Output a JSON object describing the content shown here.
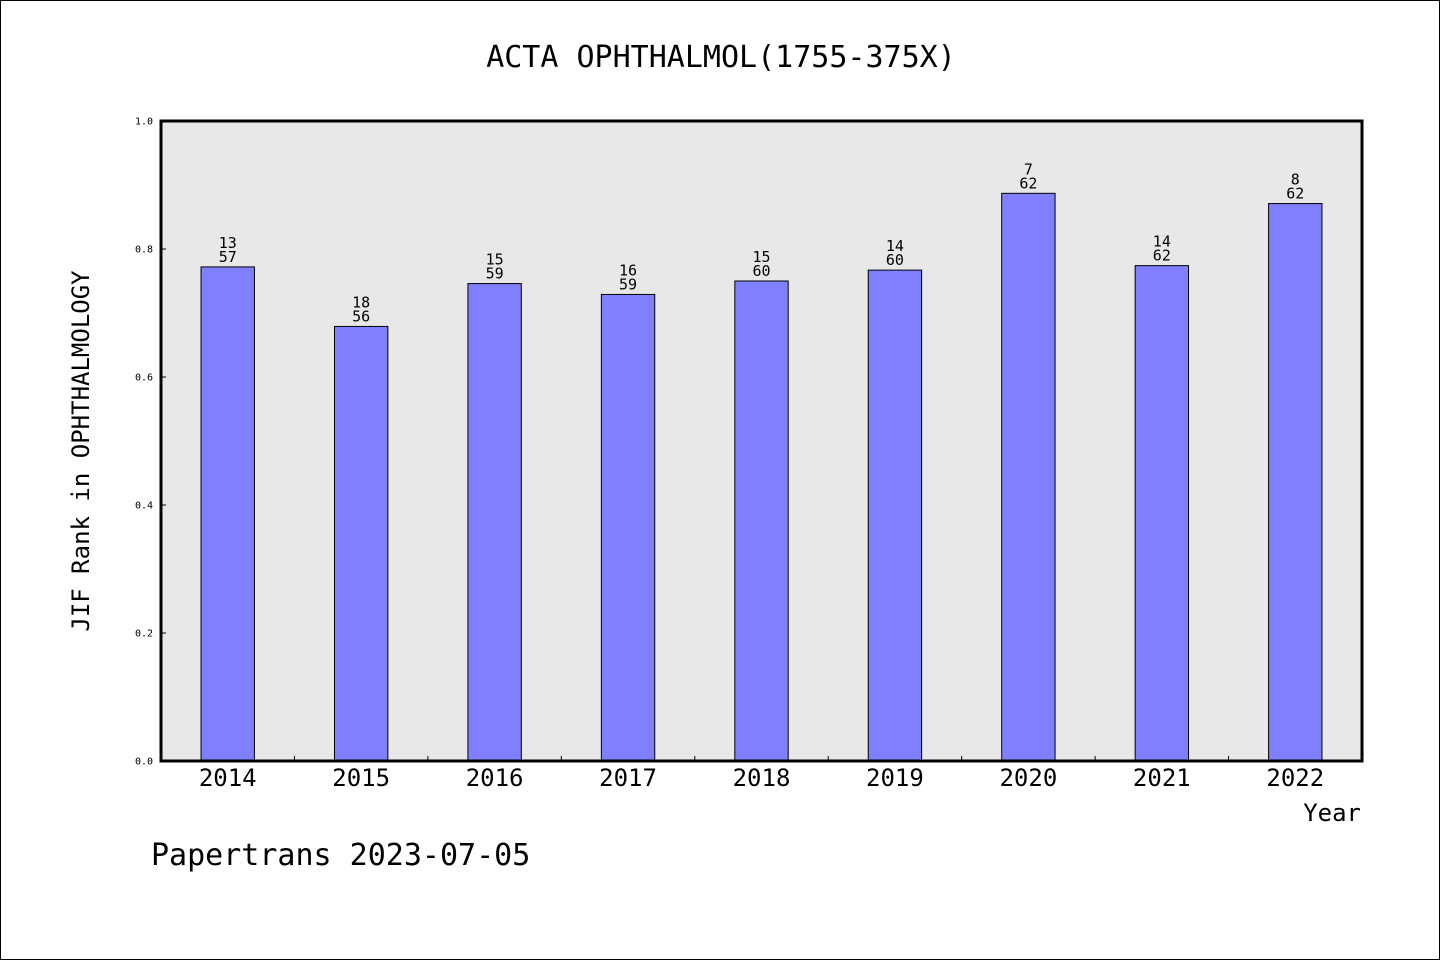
{
  "chart_data": {
    "type": "bar",
    "title": "ACTA OPHTHALMOL(1755-375X)",
    "xlabel": "Year",
    "ylabel": "JIF Rank in OPHTHALMOLOGY",
    "categories": [
      "2014",
      "2015",
      "2016",
      "2017",
      "2018",
      "2019",
      "2020",
      "2021",
      "2022"
    ],
    "values": [
      0.772,
      0.679,
      0.746,
      0.729,
      0.75,
      0.767,
      0.887,
      0.774,
      0.871
    ],
    "labels_top": [
      "13",
      "18",
      "15",
      "16",
      "15",
      "14",
      "7",
      "14",
      "8"
    ],
    "labels_bottom": [
      "57",
      "56",
      "59",
      "59",
      "60",
      "60",
      "62",
      "62",
      "62"
    ],
    "ylim": [
      0,
      1
    ],
    "yticks": [
      "0.0",
      "0.2",
      "0.4",
      "0.6",
      "0.8",
      "1.0"
    ],
    "grid": false,
    "legend": "none",
    "colors": {
      "bar": "#8080ff",
      "plot_bg": "#e8e8e8"
    }
  },
  "footer": {
    "watermark": "Papertrans 2023-07-05"
  }
}
